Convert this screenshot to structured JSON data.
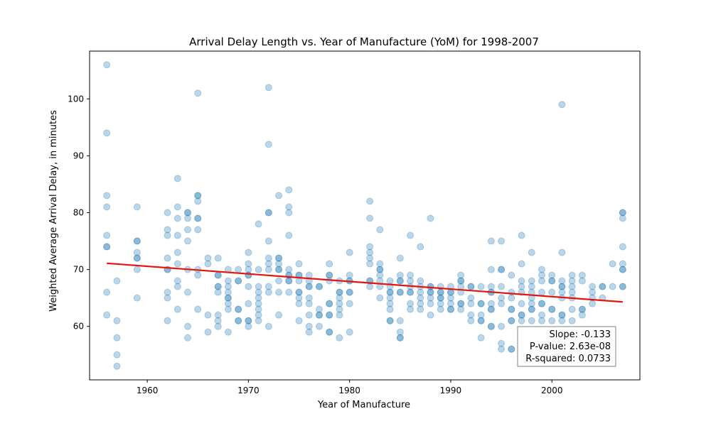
{
  "chart_data": {
    "type": "scatter",
    "title": "Arrival Delay Length vs. Year of Manufacture (YoM) for 1998-2007",
    "xlabel": "Year of Manufacture",
    "ylabel": "Weighted Average Arrival Delay, in minutes",
    "xlim": [
      1954.3,
      2008.7
    ],
    "ylim": [
      50.6,
      108.4
    ],
    "xticks": [
      1960,
      1970,
      1980,
      1990,
      2000
    ],
    "yticks": [
      60,
      70,
      80,
      90,
      100
    ],
    "grid": false,
    "points": [
      [
        1956,
        106
      ],
      [
        1956,
        94
      ],
      [
        1956,
        83
      ],
      [
        1956,
        81
      ],
      [
        1956,
        76
      ],
      [
        1956,
        74
      ],
      [
        1956,
        74
      ],
      [
        1956,
        66
      ],
      [
        1956,
        62
      ],
      [
        1957,
        68
      ],
      [
        1957,
        61
      ],
      [
        1957,
        58
      ],
      [
        1957,
        55
      ],
      [
        1957,
        53
      ],
      [
        1959,
        81
      ],
      [
        1959,
        75
      ],
      [
        1959,
        75
      ],
      [
        1959,
        73
      ],
      [
        1959,
        72
      ],
      [
        1959,
        72
      ],
      [
        1959,
        70
      ],
      [
        1959,
        65
      ],
      [
        1962,
        80
      ],
      [
        1962,
        77
      ],
      [
        1962,
        76
      ],
      [
        1962,
        72
      ],
      [
        1962,
        70
      ],
      [
        1962,
        70
      ],
      [
        1962,
        66
      ],
      [
        1962,
        65
      ],
      [
        1962,
        61
      ],
      [
        1963,
        86
      ],
      [
        1963,
        81
      ],
      [
        1963,
        79
      ],
      [
        1963,
        76
      ],
      [
        1963,
        73
      ],
      [
        1963,
        71
      ],
      [
        1963,
        68
      ],
      [
        1963,
        67
      ],
      [
        1963,
        63
      ],
      [
        1964,
        80
      ],
      [
        1964,
        80
      ],
      [
        1964,
        79
      ],
      [
        1964,
        77
      ],
      [
        1964,
        75
      ],
      [
        1964,
        70
      ],
      [
        1964,
        66
      ],
      [
        1964,
        60
      ],
      [
        1964,
        58
      ],
      [
        1965,
        101
      ],
      [
        1965,
        83
      ],
      [
        1965,
        83
      ],
      [
        1965,
        82
      ],
      [
        1965,
        79
      ],
      [
        1965,
        79
      ],
      [
        1965,
        77
      ],
      [
        1965,
        70
      ],
      [
        1965,
        69
      ],
      [
        1965,
        63
      ],
      [
        1966,
        72
      ],
      [
        1966,
        71
      ],
      [
        1966,
        62
      ],
      [
        1966,
        59
      ],
      [
        1967,
        72
      ],
      [
        1967,
        69
      ],
      [
        1967,
        69
      ],
      [
        1967,
        67
      ],
      [
        1967,
        67
      ],
      [
        1967,
        66
      ],
      [
        1967,
        62
      ],
      [
        1967,
        61
      ],
      [
        1967,
        60
      ],
      [
        1968,
        70
      ],
      [
        1968,
        68
      ],
      [
        1968,
        67
      ],
      [
        1968,
        66
      ],
      [
        1968,
        65
      ],
      [
        1968,
        65
      ],
      [
        1968,
        64
      ],
      [
        1968,
        63
      ],
      [
        1968,
        59
      ],
      [
        1969,
        70
      ],
      [
        1969,
        68
      ],
      [
        1969,
        68
      ],
      [
        1969,
        63
      ],
      [
        1969,
        63
      ],
      [
        1969,
        61
      ],
      [
        1969,
        61
      ],
      [
        1970,
        73
      ],
      [
        1970,
        71
      ],
      [
        1970,
        70
      ],
      [
        1970,
        69
      ],
      [
        1970,
        69
      ],
      [
        1970,
        67
      ],
      [
        1970,
        64
      ],
      [
        1970,
        61
      ],
      [
        1970,
        61
      ],
      [
        1970,
        60
      ],
      [
        1971,
        78
      ],
      [
        1971,
        70
      ],
      [
        1971,
        67
      ],
      [
        1971,
        66
      ],
      [
        1971,
        65
      ],
      [
        1971,
        64
      ],
      [
        1971,
        63
      ],
      [
        1971,
        62
      ],
      [
        1971,
        61
      ],
      [
        1972,
        102
      ],
      [
        1972,
        92
      ],
      [
        1972,
        80
      ],
      [
        1972,
        80
      ],
      [
        1972,
        75
      ],
      [
        1972,
        72
      ],
      [
        1972,
        71
      ],
      [
        1972,
        70
      ],
      [
        1972,
        67
      ],
      [
        1972,
        66
      ],
      [
        1972,
        60
      ],
      [
        1973,
        83
      ],
      [
        1973,
        72
      ],
      [
        1973,
        72
      ],
      [
        1973,
        71
      ],
      [
        1973,
        70
      ],
      [
        1973,
        70
      ],
      [
        1973,
        68
      ],
      [
        1973,
        66
      ],
      [
        1973,
        62
      ],
      [
        1974,
        84
      ],
      [
        1974,
        81
      ],
      [
        1974,
        80
      ],
      [
        1974,
        76
      ],
      [
        1974,
        70
      ],
      [
        1974,
        69
      ],
      [
        1974,
        69
      ],
      [
        1974,
        68
      ],
      [
        1974,
        68
      ],
      [
        1974,
        66
      ],
      [
        1975,
        71
      ],
      [
        1975,
        69
      ],
      [
        1975,
        69
      ],
      [
        1975,
        68
      ],
      [
        1975,
        66
      ],
      [
        1975,
        66
      ],
      [
        1975,
        65
      ],
      [
        1975,
        64
      ],
      [
        1975,
        61
      ],
      [
        1976,
        69
      ],
      [
        1976,
        68
      ],
      [
        1976,
        67
      ],
      [
        1976,
        67
      ],
      [
        1976,
        65
      ],
      [
        1976,
        64
      ],
      [
        1976,
        62
      ],
      [
        1976,
        60
      ],
      [
        1976,
        59
      ],
      [
        1977,
        67
      ],
      [
        1977,
        67
      ],
      [
        1977,
        63
      ],
      [
        1977,
        62
      ],
      [
        1977,
        62
      ],
      [
        1977,
        60
      ],
      [
        1978,
        71
      ],
      [
        1978,
        69
      ],
      [
        1978,
        69
      ],
      [
        1978,
        68
      ],
      [
        1978,
        64
      ],
      [
        1978,
        64
      ],
      [
        1978,
        62
      ],
      [
        1978,
        62
      ],
      [
        1978,
        59
      ],
      [
        1978,
        59
      ],
      [
        1979,
        68
      ],
      [
        1979,
        66
      ],
      [
        1979,
        66
      ],
      [
        1979,
        65
      ],
      [
        1979,
        64
      ],
      [
        1979,
        63
      ],
      [
        1979,
        62
      ],
      [
        1979,
        58
      ],
      [
        1980,
        73
      ],
      [
        1980,
        69
      ],
      [
        1980,
        68
      ],
      [
        1980,
        68
      ],
      [
        1980,
        66
      ],
      [
        1980,
        66
      ],
      [
        1980,
        64
      ],
      [
        1980,
        59
      ],
      [
        1982,
        82
      ],
      [
        1982,
        79
      ],
      [
        1982,
        74
      ],
      [
        1982,
        73
      ],
      [
        1982,
        72
      ],
      [
        1982,
        71
      ],
      [
        1982,
        68
      ],
      [
        1982,
        68
      ],
      [
        1982,
        67
      ],
      [
        1983,
        77
      ],
      [
        1983,
        71
      ],
      [
        1983,
        70
      ],
      [
        1983,
        70
      ],
      [
        1983,
        69
      ],
      [
        1983,
        68
      ],
      [
        1983,
        67
      ],
      [
        1983,
        65
      ],
      [
        1984,
        68
      ],
      [
        1984,
        67
      ],
      [
        1984,
        66
      ],
      [
        1984,
        66
      ],
      [
        1984,
        65
      ],
      [
        1984,
        64
      ],
      [
        1984,
        63
      ],
      [
        1984,
        61
      ],
      [
        1984,
        61
      ],
      [
        1985,
        72
      ],
      [
        1985,
        69
      ],
      [
        1985,
        68
      ],
      [
        1985,
        68
      ],
      [
        1985,
        66
      ],
      [
        1985,
        66
      ],
      [
        1985,
        61
      ],
      [
        1985,
        59
      ],
      [
        1985,
        58
      ],
      [
        1985,
        58
      ],
      [
        1986,
        76
      ],
      [
        1986,
        69
      ],
      [
        1986,
        68
      ],
      [
        1986,
        67
      ],
      [
        1986,
        66
      ],
      [
        1986,
        66
      ],
      [
        1986,
        64
      ],
      [
        1986,
        63
      ],
      [
        1987,
        74
      ],
      [
        1987,
        68
      ],
      [
        1987,
        67
      ],
      [
        1987,
        66
      ],
      [
        1987,
        65
      ],
      [
        1987,
        64
      ],
      [
        1987,
        63
      ],
      [
        1988,
        79
      ],
      [
        1988,
        67
      ],
      [
        1988,
        67
      ],
      [
        1988,
        66
      ],
      [
        1988,
        66
      ],
      [
        1988,
        65
      ],
      [
        1988,
        64
      ],
      [
        1988,
        62
      ],
      [
        1989,
        67
      ],
      [
        1989,
        66
      ],
      [
        1989,
        66
      ],
      [
        1989,
        65
      ],
      [
        1989,
        65
      ],
      [
        1989,
        64
      ],
      [
        1989,
        63
      ],
      [
        1990,
        67
      ],
      [
        1990,
        66
      ],
      [
        1990,
        66
      ],
      [
        1990,
        65
      ],
      [
        1990,
        64
      ],
      [
        1990,
        63
      ],
      [
        1990,
        63
      ],
      [
        1991,
        69
      ],
      [
        1991,
        68
      ],
      [
        1991,
        68
      ],
      [
        1991,
        67
      ],
      [
        1991,
        66
      ],
      [
        1991,
        64
      ],
      [
        1991,
        64
      ],
      [
        1991,
        63
      ],
      [
        1992,
        67
      ],
      [
        1992,
        67
      ],
      [
        1992,
        65
      ],
      [
        1992,
        64
      ],
      [
        1992,
        62
      ],
      [
        1992,
        61
      ],
      [
        1993,
        67
      ],
      [
        1993,
        64
      ],
      [
        1993,
        64
      ],
      [
        1993,
        62
      ],
      [
        1993,
        61
      ],
      [
        1993,
        61
      ],
      [
        1993,
        58
      ],
      [
        1994,
        75
      ],
      [
        1994,
        70
      ],
      [
        1994,
        67
      ],
      [
        1994,
        66
      ],
      [
        1994,
        66
      ],
      [
        1994,
        64
      ],
      [
        1994,
        63
      ],
      [
        1994,
        63
      ],
      [
        1994,
        60
      ],
      [
        1994,
        60
      ],
      [
        1995,
        75
      ],
      [
        1995,
        70
      ],
      [
        1995,
        70
      ],
      [
        1995,
        67
      ],
      [
        1995,
        65
      ],
      [
        1995,
        64
      ],
      [
        1995,
        60
      ],
      [
        1995,
        57
      ],
      [
        1995,
        56
      ],
      [
        1996,
        69
      ],
      [
        1996,
        66
      ],
      [
        1996,
        65
      ],
      [
        1996,
        63
      ],
      [
        1996,
        63
      ],
      [
        1996,
        61
      ],
      [
        1996,
        61
      ],
      [
        1996,
        56
      ],
      [
        1996,
        56
      ],
      [
        1997,
        76
      ],
      [
        1997,
        71
      ],
      [
        1997,
        68
      ],
      [
        1997,
        67
      ],
      [
        1997,
        66
      ],
      [
        1997,
        64
      ],
      [
        1997,
        62
      ],
      [
        1997,
        62
      ],
      [
        1997,
        61
      ],
      [
        1998,
        73
      ],
      [
        1998,
        68
      ],
      [
        1998,
        67
      ],
      [
        1998,
        66
      ],
      [
        1998,
        65
      ],
      [
        1998,
        64
      ],
      [
        1998,
        63
      ],
      [
        1998,
        63
      ],
      [
        1998,
        61
      ],
      [
        1999,
        70
      ],
      [
        1999,
        69
      ],
      [
        1999,
        68
      ],
      [
        1999,
        66
      ],
      [
        1999,
        64
      ],
      [
        1999,
        64
      ],
      [
        1999,
        62
      ],
      [
        1999,
        61
      ],
      [
        2000,
        69
      ],
      [
        2000,
        68
      ],
      [
        2000,
        68
      ],
      [
        2000,
        66
      ],
      [
        2000,
        63
      ],
      [
        2000,
        63
      ],
      [
        2000,
        61
      ],
      [
        2001,
        99
      ],
      [
        2001,
        73
      ],
      [
        2001,
        68
      ],
      [
        2001,
        67
      ],
      [
        2001,
        67
      ],
      [
        2001,
        66
      ],
      [
        2001,
        65
      ],
      [
        2001,
        62
      ],
      [
        2001,
        62
      ],
      [
        2001,
        61
      ],
      [
        2002,
        69
      ],
      [
        2002,
        68
      ],
      [
        2002,
        67
      ],
      [
        2002,
        66
      ],
      [
        2002,
        65
      ],
      [
        2002,
        63
      ],
      [
        2002,
        61
      ],
      [
        2003,
        69
      ],
      [
        2003,
        68
      ],
      [
        2003,
        63
      ],
      [
        2003,
        63
      ],
      [
        2003,
        62
      ],
      [
        2004,
        67
      ],
      [
        2004,
        66
      ],
      [
        2004,
        65
      ],
      [
        2004,
        64
      ],
      [
        2005,
        67
      ],
      [
        2005,
        67
      ],
      [
        2005,
        65
      ],
      [
        2006,
        71
      ],
      [
        2006,
        67
      ],
      [
        2007,
        80
      ],
      [
        2007,
        80
      ],
      [
        2007,
        79
      ],
      [
        2007,
        74
      ],
      [
        2007,
        71
      ],
      [
        2007,
        70
      ],
      [
        2007,
        70
      ],
      [
        2007,
        67
      ],
      [
        2007,
        67
      ]
    ],
    "regression": {
      "x_range": [
        1956,
        2007
      ],
      "y_at_start": 71.1,
      "y_at_end": 64.3
    },
    "annotation": {
      "slope_text": "Slope: -0.133",
      "pvalue_text": "P-value: 2.63e-08",
      "rsquared_text": "R-squared: 0.0733"
    },
    "colors": {
      "points": "#1f77b4",
      "regression_line": "#e8130e",
      "axes": "#000000"
    }
  }
}
